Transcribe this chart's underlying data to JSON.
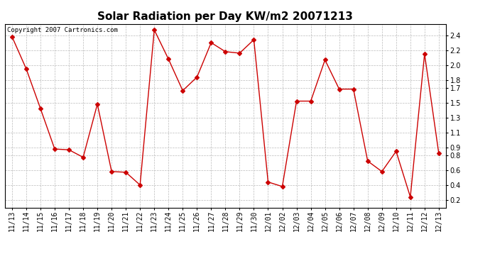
{
  "title": "Solar Radiation per Day KW/m2 20071213",
  "copyright_text": "Copyright 2007 Cartronics.com",
  "labels": [
    "11/13",
    "11/14",
    "11/15",
    "11/16",
    "11/17",
    "11/18",
    "11/19",
    "11/20",
    "11/21",
    "11/22",
    "11/23",
    "11/24",
    "11/25",
    "11/26",
    "11/27",
    "11/28",
    "11/29",
    "11/30",
    "12/01",
    "12/02",
    "12/03",
    "12/04",
    "12/05",
    "12/06",
    "12/07",
    "12/08",
    "12/09",
    "12/10",
    "12/11",
    "12/12",
    "12/13"
  ],
  "values": [
    2.38,
    1.95,
    1.42,
    0.88,
    0.87,
    0.77,
    1.48,
    0.58,
    0.57,
    0.4,
    2.47,
    2.08,
    1.66,
    1.84,
    2.3,
    2.18,
    2.16,
    2.34,
    0.44,
    0.38,
    1.52,
    1.52,
    2.07,
    1.68,
    1.68,
    0.72,
    0.58,
    0.85,
    0.24,
    2.15,
    0.82
  ],
  "line_color": "#cc0000",
  "marker": "D",
  "marker_size": 3,
  "ylim": [
    0.1,
    2.55
  ],
  "yticks": [
    0.2,
    0.4,
    0.6,
    0.8,
    0.9,
    1.1,
    1.3,
    1.5,
    1.7,
    1.8,
    2.0,
    2.2,
    2.4
  ],
  "bg_color": "#ffffff",
  "grid_color": "#bbbbbb",
  "title_fontsize": 11,
  "tick_fontsize": 7,
  "copyright_fontsize": 6.5
}
